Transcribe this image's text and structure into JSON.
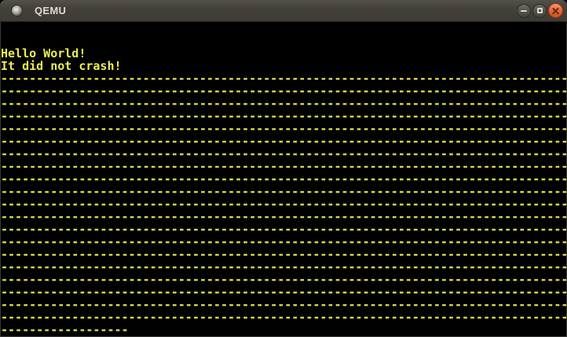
{
  "window": {
    "title": "QEMU",
    "icon": "window-orb-icon",
    "controls": [
      {
        "name": "minimize",
        "icon": "minimize-icon"
      },
      {
        "name": "maximize",
        "icon": "maximize-icon"
      },
      {
        "name": "close",
        "icon": "close-icon"
      }
    ]
  },
  "colors": {
    "titlebar_bg": "#454239",
    "title_text": "#dfdbd3",
    "close_button": "#e66a3c",
    "screen_bg": "#000000",
    "screen_text": "#eded4f"
  },
  "screen": {
    "columns": 80,
    "rows": 25,
    "lines": [
      {
        "text": ""
      },
      {
        "text": ""
      },
      {
        "text": "Hello World!"
      },
      {
        "text": "It did not crash!"
      },
      {
        "char": "-",
        "count": 80,
        "repeat_rows": 20
      },
      {
        "char": "-",
        "count": 18
      }
    ]
  }
}
